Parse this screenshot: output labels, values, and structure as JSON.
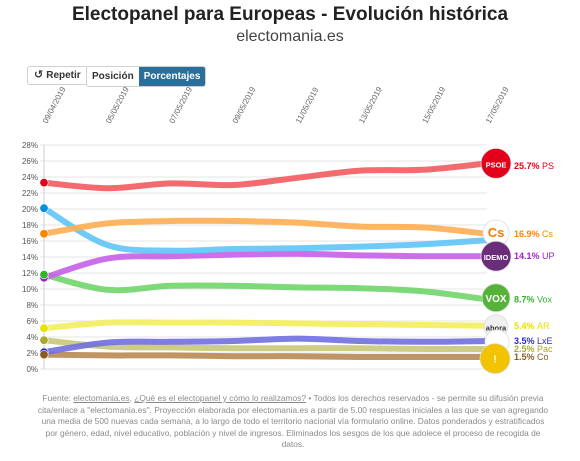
{
  "header": {
    "title": "Electopanel para Europeas - Evolución histórica",
    "subtitle": "electomania.es"
  },
  "controls": {
    "repeat_label": "Repetir",
    "repeat_icon": "rotate-ccw-icon",
    "position_label": "Posición",
    "percentages_label": "Porcentajes",
    "active_color": "#2a6f9b"
  },
  "footer": {
    "source_label": "Fuente:",
    "source_link": "electomania.es",
    "faq_link": "¿Qué es el electopanel y cómo lo realizamos?",
    "text": "• Todos los derechos reservados - se permite su difusión previa cita/enlace a \"electomania.es\". Proyección elaborada por electomania.es a partir de 5.00 respuestas iniciales a las que se van agregando una media de 500 nuevas cada semana, a lo largo de todo el territorio nacional vía formulario online. Datos ponderados y estratificados por género, edad, nivel educativo, población y nivel de ingresos. Eliminados los sesgos de los que adolece el proceso de recogida de datos."
  },
  "chart_data": {
    "type": "line",
    "x_tick_labels": [
      "09/04/2019",
      "05/05/2019",
      "07/05/2019",
      "09/05/2019",
      "11/05/2019",
      "13/05/2019",
      "15/05/2019",
      "17/05/2019"
    ],
    "ylim": [
      0,
      28
    ],
    "yticks": [
      0,
      2,
      4,
      6,
      8,
      10,
      12,
      14,
      16,
      18,
      20,
      22,
      24,
      26,
      28
    ],
    "ytick_format": "%",
    "grid": true,
    "series": [
      {
        "name": "PSOE",
        "label": "25.7% PS",
        "color": "#f25a5f",
        "dot": "#e0001a",
        "values": [
          23.3,
          22.6,
          23.2,
          23.0,
          23.9,
          24.8,
          24.9,
          25.7
        ]
      },
      {
        "name": "Cs",
        "label": "16.9% Cs",
        "color": "#ffae52",
        "dot": "#fa8500",
        "values": [
          16.9,
          18.2,
          18.5,
          18.5,
          18.3,
          17.8,
          17.7,
          16.9
        ]
      },
      {
        "name": "",
        "label": "",
        "color": "#5fc4f7",
        "dot": "#0090e0",
        "values": [
          20.1,
          15.5,
          14.8,
          15.0,
          15.1,
          15.3,
          15.6,
          16.1
        ]
      },
      {
        "name": "UP",
        "label": "14.1% UP",
        "color": "#c65fe8",
        "dot": "#9d1fc8",
        "values": [
          11.4,
          13.8,
          14.1,
          14.3,
          14.4,
          14.2,
          14.1,
          14.1
        ]
      },
      {
        "name": "Vox",
        "label": "8.7% Vox",
        "color": "#70d56a",
        "dot": "#35b12c",
        "values": [
          11.8,
          9.9,
          10.4,
          10.4,
          10.2,
          10.1,
          9.7,
          8.7
        ]
      },
      {
        "name": "AR",
        "label": "5.4% AR",
        "color": "#f3ee5e",
        "dot": "#e7e000",
        "values": [
          5.1,
          5.8,
          5.8,
          5.8,
          5.7,
          5.6,
          5.5,
          5.4
        ]
      },
      {
        "name": "LxE",
        "label": "3.5% LxE",
        "color": "#6f6fe0",
        "dot": "#2b2bc0",
        "values": [
          2.1,
          3.3,
          3.4,
          3.5,
          3.8,
          3.5,
          3.4,
          3.5
        ]
      },
      {
        "name": "Pac",
        "label": "2.5% Pac",
        "color": "#c8c87a",
        "dot": "#a8a830",
        "values": [
          3.6,
          2.8,
          2.7,
          2.6,
          2.6,
          2.6,
          2.5,
          2.5
        ]
      },
      {
        "name": "Co",
        "label": "1.5% Co",
        "color": "#b98a54",
        "dot": "#8a5a20",
        "values": [
          1.8,
          1.7,
          1.7,
          1.6,
          1.6,
          1.5,
          1.5,
          1.5
        ]
      }
    ],
    "logos": [
      {
        "text": "PSOE",
        "bg": "#e3001b",
        "fg": "#ffffff"
      },
      {
        "text": "Cs",
        "bg": "#ffffff",
        "fg": "#f07d00"
      },
      {
        "text": "IDEMO",
        "bg": "#6a2d7a",
        "fg": "#ffffff"
      },
      {
        "text": "VOX",
        "bg": "#55b33a",
        "fg": "#ffffff"
      },
      {
        "text": "ahora",
        "bg": "#f0f0f0",
        "fg": "#333333"
      },
      {
        "text": "",
        "bg": "#ffffff",
        "fg": "#1e3c8c"
      },
      {
        "text": "!",
        "bg": "#f2c300",
        "fg": "#ffffff"
      }
    ]
  }
}
